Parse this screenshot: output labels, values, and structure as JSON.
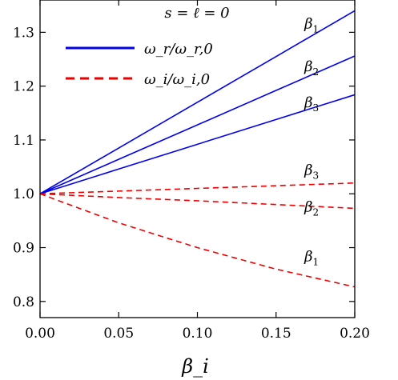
{
  "chart_data": {
    "type": "line",
    "title": "s = ℓ = 0",
    "xlabel": "β_i",
    "ylabel": "",
    "xlim": [
      0,
      0.2
    ],
    "ylim": [
      0.77,
      1.36
    ],
    "xticks": [
      "0.00",
      "0.05",
      "0.10",
      "0.15",
      "0.20"
    ],
    "yticks": [
      "0.8",
      "0.9",
      "1.0",
      "1.1",
      "1.2",
      "1.3"
    ],
    "legend": {
      "position": "top-left",
      "entries": [
        {
          "label": "ω_r/ω_r,0",
          "style": "solid",
          "color": "#0000ee"
        },
        {
          "label": "ω_i/ω_i,0",
          "style": "dashed",
          "color": "#ee0000"
        }
      ]
    },
    "series": [
      {
        "name": "β1",
        "group": "real",
        "style": "solid",
        "color": "#0000ee",
        "x": [
          0,
          0.05,
          0.1,
          0.15,
          0.2
        ],
        "y": [
          1.0,
          1.085,
          1.17,
          1.255,
          1.34
        ]
      },
      {
        "name": "β2",
        "group": "real",
        "style": "solid",
        "color": "#0000ee",
        "x": [
          0,
          0.05,
          0.1,
          0.15,
          0.2
        ],
        "y": [
          1.0,
          1.064,
          1.128,
          1.192,
          1.256
        ]
      },
      {
        "name": "β3",
        "group": "real",
        "style": "solid",
        "color": "#0000ee",
        "x": [
          0,
          0.05,
          0.1,
          0.15,
          0.2
        ],
        "y": [
          1.0,
          1.046,
          1.092,
          1.138,
          1.184
        ]
      },
      {
        "name": "β3",
        "group": "imag",
        "style": "dashed",
        "color": "#ee0000",
        "x": [
          0,
          0.05,
          0.1,
          0.15,
          0.2
        ],
        "y": [
          1.0,
          1.005,
          1.01,
          1.015,
          1.02
        ]
      },
      {
        "name": "β2",
        "group": "imag",
        "style": "dashed",
        "color": "#ee0000",
        "x": [
          0,
          0.05,
          0.1,
          0.15,
          0.2
        ],
        "y": [
          1.0,
          0.993,
          0.987,
          0.98,
          0.973
        ]
      },
      {
        "name": "β1",
        "group": "imag",
        "style": "dashed",
        "color": "#ee0000",
        "x": [
          0,
          0.05,
          0.1,
          0.15,
          0.2
        ],
        "y": [
          1.0,
          0.946,
          0.9,
          0.86,
          0.827
        ]
      }
    ],
    "curve_labels": [
      {
        "text": "β1",
        "x": 0.168,
        "y": 1.307
      },
      {
        "text": "β2",
        "x": 0.168,
        "y": 1.228
      },
      {
        "text": "β3",
        "x": 0.168,
        "y": 1.161
      },
      {
        "text": "β3",
        "x": 0.168,
        "y": 1.035
      },
      {
        "text": "β2",
        "x": 0.168,
        "y": 0.967
      },
      {
        "text": "β1",
        "x": 0.168,
        "y": 0.875
      }
    ],
    "grid": false
  }
}
